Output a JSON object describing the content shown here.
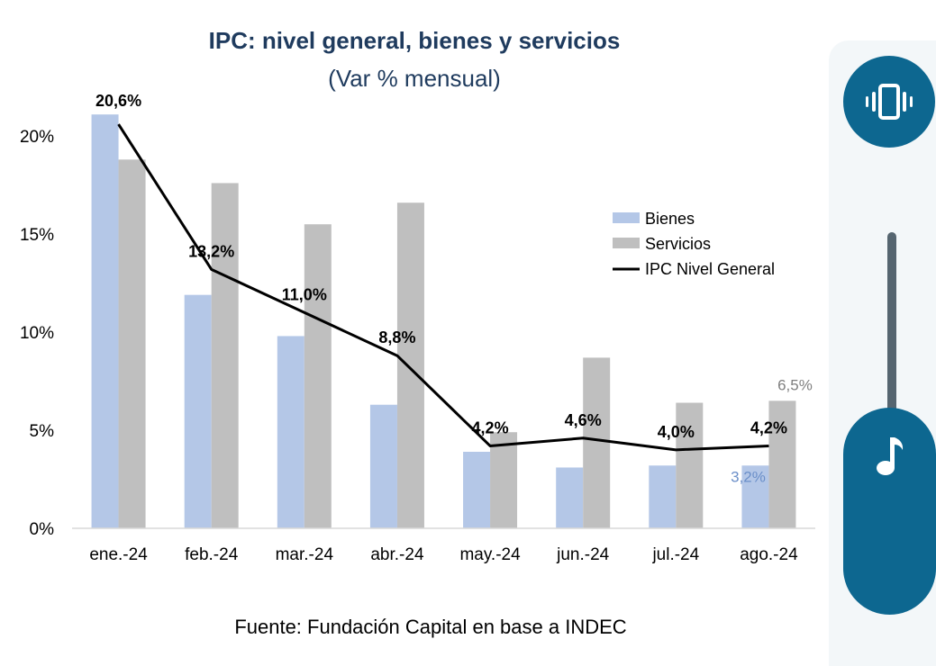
{
  "chart_data": {
    "type": "bar",
    "title": "IPC: nivel general, bienes y servicios",
    "subtitle": "(Var % mensual)",
    "categories": [
      "ene.-24",
      "feb.-24",
      "mar.-24",
      "abr.-24",
      "may.-24",
      "jun.-24",
      "jul.-24",
      "ago.-24"
    ],
    "series": [
      {
        "name": "Bienes",
        "kind": "bar",
        "color": "#b4c7e7",
        "values": [
          21.1,
          11.9,
          9.8,
          6.3,
          3.9,
          3.1,
          3.2,
          3.2
        ]
      },
      {
        "name": "Servicios",
        "kind": "bar",
        "color": "#bfbfbf",
        "values": [
          18.8,
          17.6,
          15.5,
          16.6,
          4.9,
          8.7,
          6.4,
          6.5
        ]
      },
      {
        "name": "IPC Nivel General",
        "kind": "line",
        "color": "#000000",
        "values": [
          20.6,
          13.2,
          11.0,
          8.8,
          4.2,
          4.6,
          4.0,
          4.2
        ]
      }
    ],
    "line_labels": [
      "20,6%",
      "13,2%",
      "11,0%",
      "8,8%",
      "4,2%",
      "4,6%",
      "4,0%",
      "4,2%"
    ],
    "extra_labels": [
      {
        "text": "6,5%",
        "series": "Servicios",
        "index": 7,
        "color": "#7f7f7f"
      },
      {
        "text": "3,2%",
        "series": "Bienes",
        "index": 7,
        "color": "#6b8fc9"
      }
    ],
    "yticks": [
      0,
      5,
      10,
      15,
      20
    ],
    "ytick_labels": [
      "0%",
      "5%",
      "10%",
      "15%",
      "20%"
    ],
    "ylim": [
      0,
      21.2
    ],
    "legend_position": "upper-right",
    "grid": false
  },
  "source": "Fuente: Fundación Capital en base a INDEC",
  "overlay": {
    "vibrate_icon": "vibrate-icon",
    "music_icon": "music-note-icon",
    "accent": "#0d6790"
  }
}
